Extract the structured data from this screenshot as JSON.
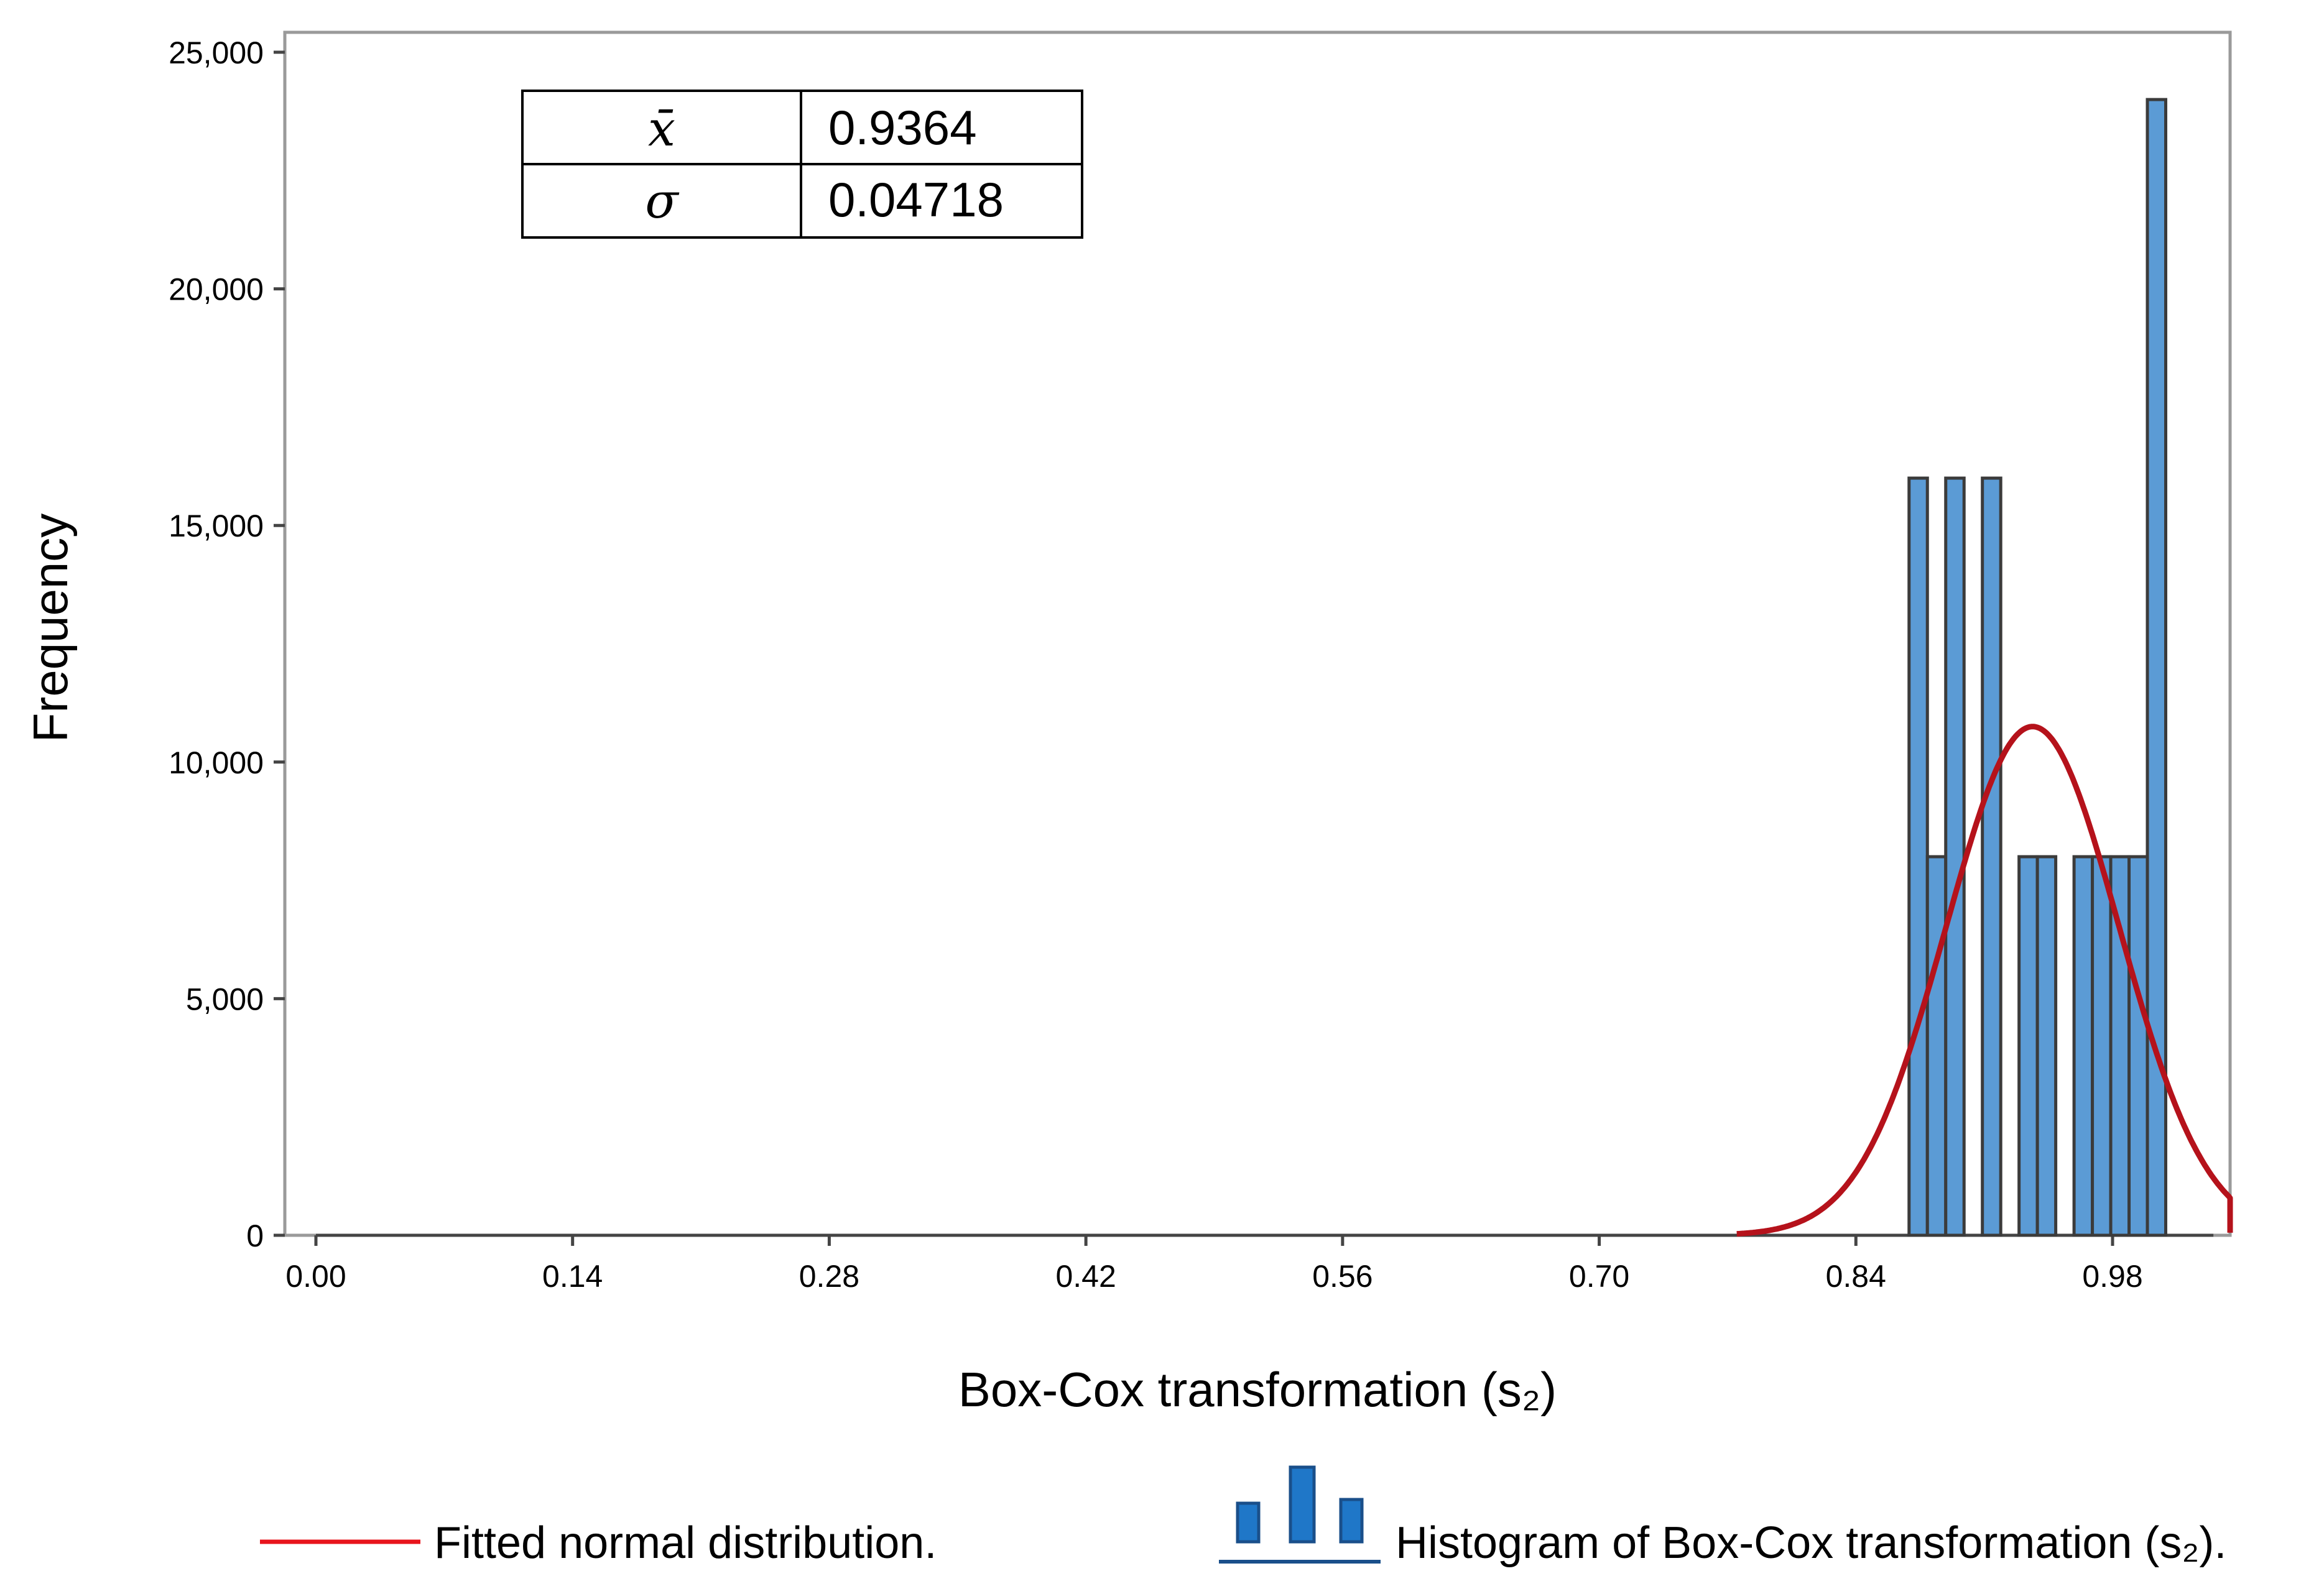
{
  "chart_data": {
    "type": "bar",
    "title": "",
    "xlabel": "Box-Cox transformation (s₂)",
    "ylabel": "Frequency",
    "xlim": [
      -0.015,
      1.09
    ],
    "ylim": [
      0,
      25000
    ],
    "x_ticks": [
      0.0,
      0.14,
      0.28,
      0.42,
      0.56,
      0.7,
      0.84,
      0.98
    ],
    "x_tick_labels": [
      "0.00",
      "0.14",
      "0.28",
      "0.42",
      "0.56",
      "0.70",
      "0.84",
      "0.98"
    ],
    "y_ticks": [
      0,
      5000,
      10000,
      15000,
      20000,
      25000
    ],
    "y_tick_labels": [
      "0",
      "5,000",
      "10,000",
      "15,000",
      "20,000",
      "25,000"
    ],
    "axis_extent": [
      0.0,
      1.035
    ],
    "bin_width": 0.01,
    "histogram": {
      "name": "Histogram of Box-Cox transformation (s₂).",
      "color": "#5b9bd5",
      "bars": [
        {
          "x": 0.874,
          "count": 16000
        },
        {
          "x": 0.884,
          "count": 8000
        },
        {
          "x": 0.894,
          "count": 16000
        },
        {
          "x": 0.914,
          "count": 16000
        },
        {
          "x": 0.934,
          "count": 8000
        },
        {
          "x": 0.944,
          "count": 8000
        },
        {
          "x": 0.964,
          "count": 8000
        },
        {
          "x": 0.974,
          "count": 8000
        },
        {
          "x": 0.984,
          "count": 8000
        },
        {
          "x": 0.994,
          "count": 8000
        },
        {
          "x": 1.004,
          "count": 24000
        }
      ]
    },
    "fitted_curve": {
      "name": "Fitted normal distribution.",
      "color": "#b5121b",
      "mean": 0.9364,
      "sigma": 0.04718,
      "peak": 10750,
      "x_start": 0.775,
      "x_end": 1.09
    },
    "stats": [
      {
        "symbol": "x̄",
        "value": "0.9364"
      },
      {
        "symbol": "σ",
        "value": "0.04718"
      }
    ]
  },
  "legend": {
    "fitted_label": "Fitted normal distribution.",
    "histogram_label": "Histogram of Box-Cox transformation (s₂).",
    "line_color": "#e8141c",
    "icon_color": "#1f77c8",
    "icon_border": "#1a4f8a"
  }
}
